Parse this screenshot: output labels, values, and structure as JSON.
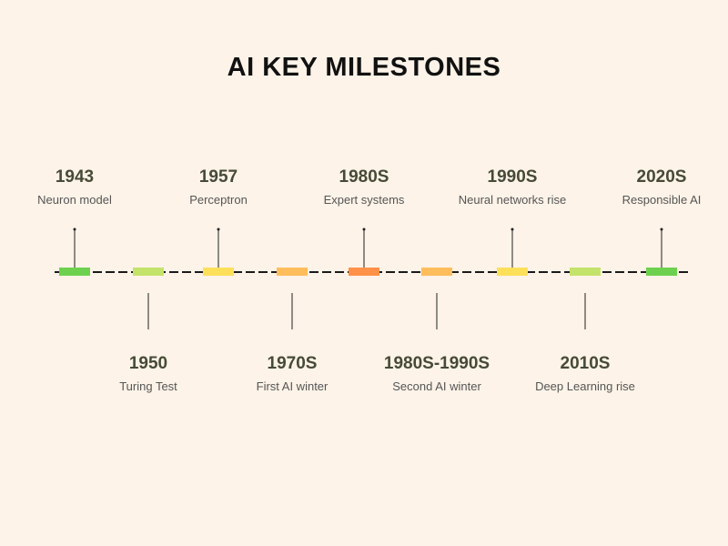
{
  "title": "AI KEY MILESTONES",
  "milestones": [
    {
      "year": "1943",
      "label": "Neuron model",
      "side": "top",
      "color": "#6dd14f"
    },
    {
      "year": "1950",
      "label": "Turing Test",
      "side": "bottom",
      "color": "#c4e36a"
    },
    {
      "year": "1957",
      "label": "Perceptron",
      "side": "top",
      "color": "#fde05a"
    },
    {
      "year": "1970S",
      "label": "First AI winter",
      "side": "bottom",
      "color": "#ffbd5c"
    },
    {
      "year": "1980S",
      "label": "Expert systems",
      "side": "top",
      "color": "#ff9148"
    },
    {
      "year": "1980S-1990S",
      "label": "Second AI winter",
      "side": "bottom",
      "color": "#ffbd5c"
    },
    {
      "year": "1990S",
      "label": "Neural networks rise",
      "side": "top",
      "color": "#fde05a"
    },
    {
      "year": "2010S",
      "label": "Deep Learning rise",
      "side": "bottom",
      "color": "#c4e36a"
    },
    {
      "year": "2020S",
      "label": "Responsible AI",
      "side": "top",
      "color": "#6dd14f"
    }
  ]
}
